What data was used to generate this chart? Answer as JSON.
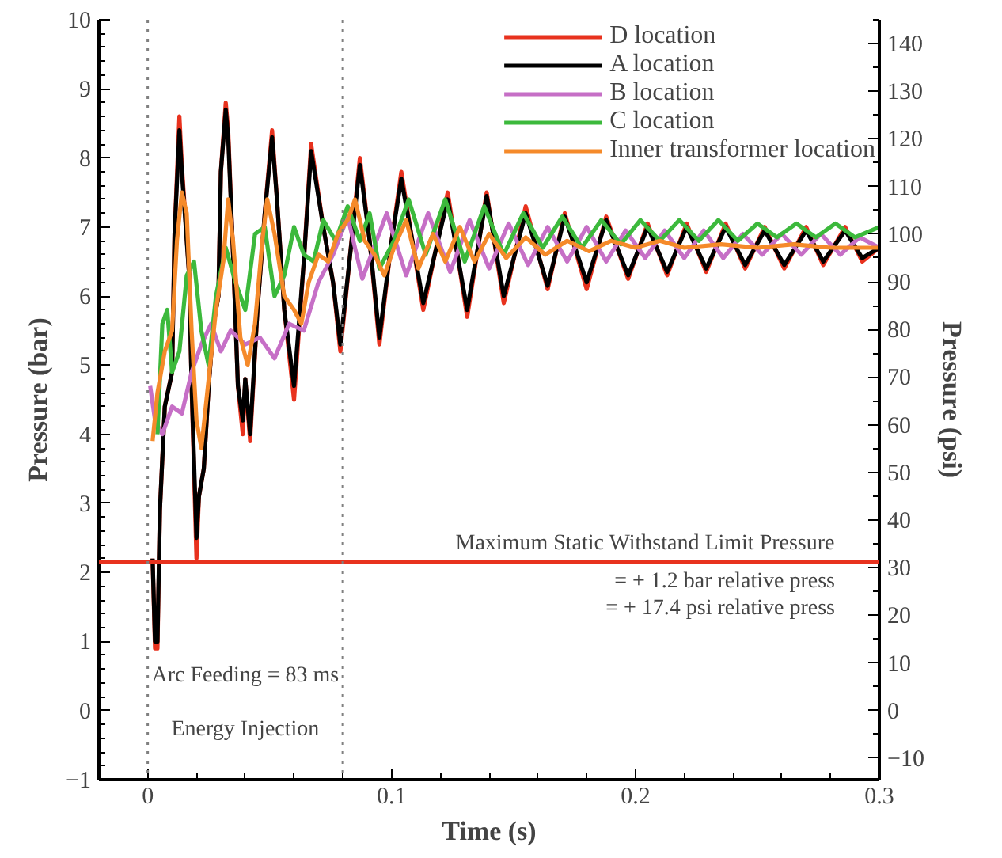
{
  "chart_data": {
    "type": "line",
    "xlabel": "Time (s)",
    "ylabel": "Pressure (bar)",
    "y2label": "Pressure (psi)",
    "xlim": [
      -0.02,
      0.3
    ],
    "xticks": [
      0,
      0.1,
      0.2,
      0.3
    ],
    "ylim": [
      -1,
      10
    ],
    "yticks": [
      -1,
      0,
      1,
      2,
      3,
      4,
      5,
      6,
      7,
      8,
      9,
      10
    ],
    "y2lim": [
      -14.5,
      145
    ],
    "y2ticks": [
      -10,
      0,
      10,
      20,
      30,
      40,
      50,
      60,
      70,
      80,
      90,
      100,
      110,
      120,
      130,
      140
    ],
    "legend": "top right",
    "line_style": "solid",
    "series": [
      {
        "name": "D location",
        "color": "#e8321e",
        "x": [
          0.002,
          0.003,
          0.004,
          0.005,
          0.007,
          0.01,
          0.011,
          0.013,
          0.014,
          0.017,
          0.018,
          0.02,
          0.021,
          0.023,
          0.025,
          0.027,
          0.029,
          0.03,
          0.032,
          0.033,
          0.035,
          0.037,
          0.039,
          0.04,
          0.042,
          0.045,
          0.048,
          0.051,
          0.053,
          0.056,
          0.06,
          0.064,
          0.067,
          0.072,
          0.076,
          0.079,
          0.083,
          0.087,
          0.091,
          0.095,
          0.1,
          0.104,
          0.113,
          0.123,
          0.131,
          0.139,
          0.146,
          0.155,
          0.164,
          0.171,
          0.18,
          0.188,
          0.197,
          0.205,
          0.213,
          0.221,
          0.229,
          0.237,
          0.245,
          0.253,
          0.261,
          0.27,
          0.277,
          0.286,
          0.293,
          0.3
        ],
        "values": [
          2.2,
          0.9,
          0.9,
          2.9,
          4.4,
          4.9,
          6.9,
          8.6,
          7.9,
          6.3,
          4.7,
          2.2,
          3.1,
          3.5,
          4.7,
          5.6,
          6.0,
          7.8,
          8.8,
          8.4,
          6.6,
          4.7,
          4.0,
          4.8,
          3.9,
          5.8,
          7.2,
          8.4,
          7.4,
          5.8,
          4.5,
          6.5,
          8.2,
          7.0,
          6.2,
          5.2,
          6.6,
          8.0,
          6.8,
          5.3,
          6.8,
          7.8,
          5.8,
          7.5,
          5.7,
          7.5,
          5.9,
          7.3,
          6.1,
          7.2,
          6.1,
          7.15,
          6.25,
          7.05,
          6.3,
          7.05,
          6.35,
          7.05,
          6.4,
          7.0,
          6.4,
          7.0,
          6.45,
          7.0,
          6.5,
          6.7
        ]
      },
      {
        "name": "A location",
        "color": "#000000",
        "x": [
          0.002,
          0.003,
          0.004,
          0.005,
          0.007,
          0.01,
          0.011,
          0.013,
          0.014,
          0.017,
          0.018,
          0.02,
          0.021,
          0.023,
          0.025,
          0.027,
          0.029,
          0.03,
          0.032,
          0.033,
          0.035,
          0.037,
          0.039,
          0.04,
          0.042,
          0.045,
          0.048,
          0.051,
          0.053,
          0.056,
          0.06,
          0.064,
          0.067,
          0.072,
          0.076,
          0.079,
          0.083,
          0.087,
          0.091,
          0.095,
          0.1,
          0.104,
          0.113,
          0.123,
          0.131,
          0.139,
          0.146,
          0.155,
          0.164,
          0.171,
          0.18,
          0.188,
          0.197,
          0.205,
          0.213,
          0.221,
          0.229,
          0.237,
          0.245,
          0.253,
          0.261,
          0.27,
          0.277,
          0.286,
          0.293,
          0.3
        ],
        "values": [
          2.2,
          1.0,
          1.0,
          2.9,
          4.4,
          4.9,
          6.9,
          8.4,
          7.8,
          6.3,
          4.7,
          2.5,
          3.1,
          3.5,
          4.7,
          5.6,
          6.0,
          7.8,
          8.7,
          8.3,
          6.6,
          4.7,
          4.2,
          4.8,
          4.0,
          5.8,
          7.2,
          8.3,
          7.4,
          5.8,
          4.7,
          6.5,
          8.1,
          7.0,
          6.2,
          5.3,
          6.6,
          7.9,
          6.8,
          5.4,
          6.8,
          7.7,
          5.9,
          7.4,
          5.8,
          7.45,
          6.0,
          7.2,
          6.15,
          7.15,
          6.2,
          7.1,
          6.3,
          7.0,
          6.35,
          7.0,
          6.4,
          7.0,
          6.45,
          6.95,
          6.45,
          6.95,
          6.5,
          6.95,
          6.55,
          6.7
        ]
      },
      {
        "name": "B location",
        "color": "#c66fc6",
        "x": [
          0.001,
          0.003,
          0.006,
          0.01,
          0.014,
          0.018,
          0.022,
          0.026,
          0.03,
          0.034,
          0.04,
          0.046,
          0.052,
          0.058,
          0.064,
          0.07,
          0.076,
          0.082,
          0.088,
          0.098,
          0.106,
          0.115,
          0.124,
          0.132,
          0.14,
          0.148,
          0.156,
          0.164,
          0.172,
          0.18,
          0.188,
          0.196,
          0.204,
          0.212,
          0.22,
          0.228,
          0.236,
          0.244,
          0.252,
          0.26,
          0.268,
          0.276,
          0.284,
          0.292,
          0.3
        ],
        "values": [
          4.7,
          4.2,
          4.0,
          4.4,
          4.3,
          4.9,
          5.3,
          5.6,
          5.2,
          5.5,
          5.3,
          5.4,
          5.1,
          5.6,
          5.5,
          6.2,
          6.6,
          7.15,
          6.25,
          7.2,
          6.3,
          7.2,
          6.35,
          7.1,
          6.4,
          7.05,
          6.45,
          7.0,
          6.5,
          7.0,
          6.5,
          6.95,
          6.55,
          6.95,
          6.55,
          6.95,
          6.55,
          6.9,
          6.6,
          6.9,
          6.6,
          6.9,
          6.6,
          6.85,
          6.7
        ]
      },
      {
        "name": "C location",
        "color": "#3cb93c",
        "x": [
          0.004,
          0.006,
          0.008,
          0.01,
          0.013,
          0.016,
          0.019,
          0.022,
          0.025,
          0.028,
          0.032,
          0.036,
          0.04,
          0.044,
          0.048,
          0.052,
          0.056,
          0.06,
          0.064,
          0.068,
          0.072,
          0.077,
          0.082,
          0.087,
          0.091,
          0.095,
          0.101,
          0.107,
          0.114,
          0.122,
          0.13,
          0.138,
          0.146,
          0.154,
          0.162,
          0.17,
          0.178,
          0.186,
          0.194,
          0.202,
          0.21,
          0.218,
          0.226,
          0.234,
          0.242,
          0.25,
          0.258,
          0.266,
          0.274,
          0.282,
          0.29,
          0.3
        ],
        "values": [
          4.0,
          5.6,
          5.8,
          4.9,
          5.2,
          6.3,
          6.5,
          5.5,
          5.0,
          6.0,
          6.7,
          6.2,
          5.8,
          6.9,
          7.0,
          6.0,
          6.3,
          7.0,
          6.6,
          6.5,
          7.1,
          6.8,
          7.3,
          6.8,
          7.2,
          6.4,
          6.8,
          7.4,
          6.6,
          7.4,
          6.5,
          7.3,
          6.6,
          7.2,
          6.7,
          7.15,
          6.7,
          7.1,
          6.75,
          7.1,
          6.8,
          7.1,
          6.8,
          7.1,
          6.8,
          7.05,
          6.85,
          7.05,
          6.85,
          7.05,
          6.85,
          7.0
        ]
      },
      {
        "name": "Inner transformer location",
        "color": "#f58a2a",
        "x": [
          0.002,
          0.004,
          0.007,
          0.01,
          0.012,
          0.014,
          0.016,
          0.018,
          0.02,
          0.022,
          0.025,
          0.028,
          0.031,
          0.033,
          0.035,
          0.038,
          0.041,
          0.044,
          0.047,
          0.049,
          0.052,
          0.056,
          0.06,
          0.063,
          0.066,
          0.07,
          0.074,
          0.078,
          0.082,
          0.085,
          0.089,
          0.093,
          0.097,
          0.101,
          0.106,
          0.111,
          0.117,
          0.122,
          0.128,
          0.134,
          0.14,
          0.147,
          0.155,
          0.163,
          0.172,
          0.181,
          0.19,
          0.2,
          0.21,
          0.22,
          0.235,
          0.25,
          0.265,
          0.28,
          0.3
        ],
        "values": [
          3.9,
          4.6,
          5.2,
          5.5,
          6.8,
          7.5,
          7.2,
          5.5,
          4.2,
          3.8,
          4.8,
          5.8,
          6.5,
          7.4,
          6.8,
          5.4,
          5.0,
          5.6,
          6.8,
          7.4,
          6.9,
          6.0,
          5.8,
          5.6,
          6.2,
          6.6,
          6.5,
          6.9,
          7.1,
          7.4,
          6.8,
          6.6,
          6.3,
          6.7,
          7.1,
          6.4,
          6.9,
          6.5,
          7.0,
          6.5,
          6.9,
          6.55,
          6.85,
          6.6,
          6.8,
          6.65,
          6.8,
          6.7,
          6.8,
          6.7,
          6.75,
          6.7,
          6.75,
          6.7,
          6.7
        ]
      }
    ],
    "ref_lines": [
      {
        "axis": "y",
        "value": 2.15,
        "label": "Maximum Static Withstand Limit Pressure",
        "color": "#e8321e",
        "line_style": "solid"
      },
      {
        "axis": "x",
        "value": 0,
        "label": null,
        "color": "#808080",
        "line_style": "dotted"
      },
      {
        "axis": "x",
        "value": 0.08,
        "label": null,
        "color": "#808080",
        "line_style": "dotted"
      }
    ],
    "annotations": [
      "= + 1.2 bar relative press",
      "= + 17.4 psi relative press",
      "Arc Feeding = 83 ms",
      "Energy Injection"
    ]
  }
}
